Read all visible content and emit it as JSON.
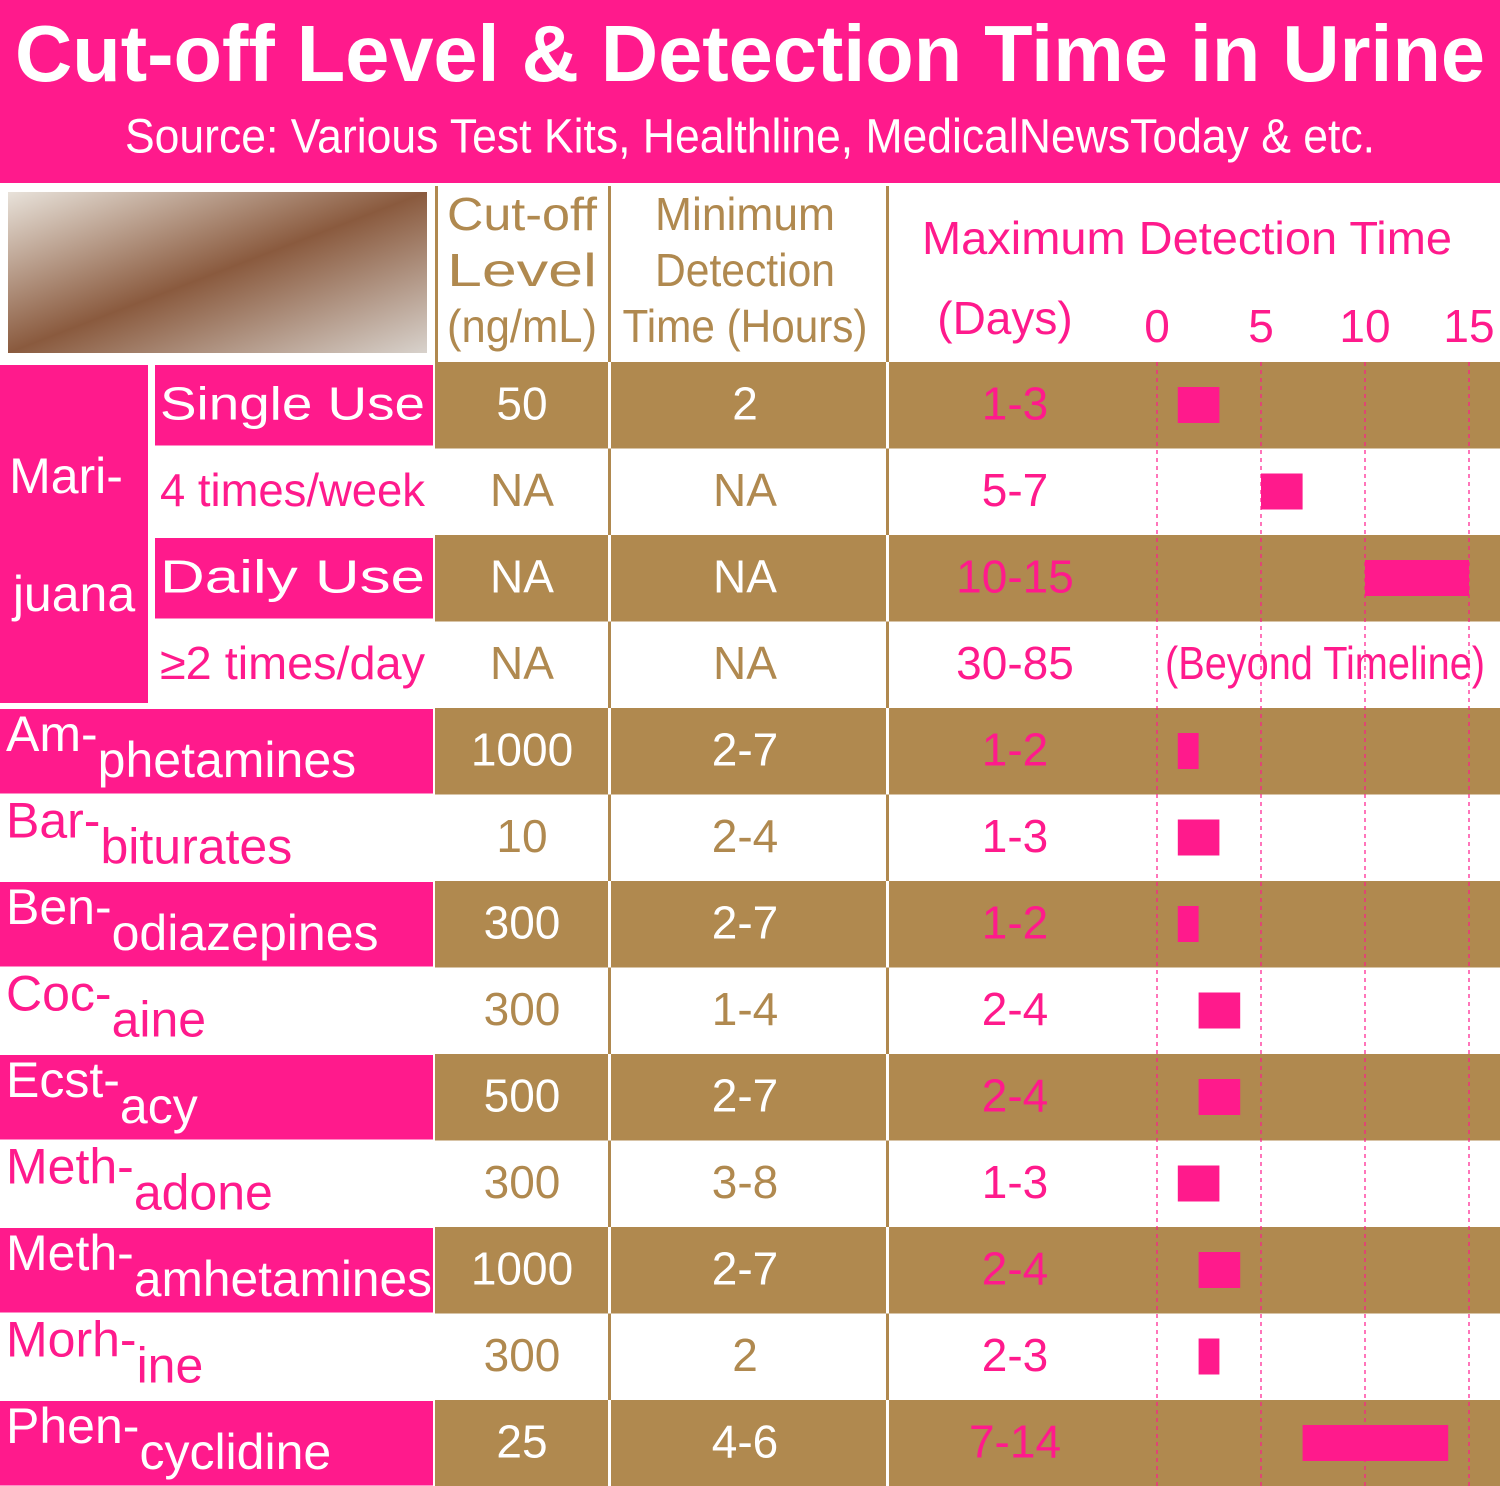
{
  "header": {
    "title": "Cut-off Level & Detection Time in Urine",
    "subtitle": "Source: Various Test Kits, Healthline, MedicalNewsToday & etc."
  },
  "columns": {
    "cutoff": [
      "Cut-off",
      "Level",
      "(ng/mL)"
    ],
    "minimum": [
      "Minimum",
      "Detection",
      "Time (Hours)"
    ],
    "maximum": [
      "Maximum Detection Time",
      "(Days)"
    ]
  },
  "timeline": {
    "xlim": [
      0,
      15
    ],
    "xticks": [
      0,
      5,
      10,
      15
    ],
    "beyond_label": "(Beyond Timeline)"
  },
  "marijuana": {
    "label": [
      "Mari-",
      "juana"
    ],
    "rows": [
      {
        "use": "Single Use",
        "cutoff": "50",
        "minimum": "2",
        "maximum": "1-3",
        "range": [
          1,
          3
        ]
      },
      {
        "use": "4 times/week",
        "cutoff": "NA",
        "minimum": "NA",
        "maximum": "5-7",
        "range": [
          5,
          7
        ]
      },
      {
        "use": "Daily Use",
        "cutoff": "NA",
        "minimum": "NA",
        "maximum": "10-15",
        "range": [
          10,
          15
        ]
      },
      {
        "use": "≥2 times/day",
        "cutoff": "NA",
        "minimum": "NA",
        "maximum": "30-85"
      }
    ]
  },
  "drugs": [
    {
      "name": [
        "Am-",
        "phetamines"
      ],
      "cutoff": "1000",
      "minimum": "2-7",
      "maximum": "1-2",
      "range": [
        1,
        2
      ]
    },
    {
      "name": [
        "Bar-",
        "biturates"
      ],
      "cutoff": "10",
      "minimum": "2-4",
      "maximum": "1-3",
      "range": [
        1,
        3
      ]
    },
    {
      "name": [
        "Ben-",
        "odiazepines"
      ],
      "cutoff": "300",
      "minimum": "2-7",
      "maximum": "1-2",
      "range": [
        1,
        2
      ]
    },
    {
      "name": [
        "Coc-",
        "aine"
      ],
      "cutoff": "300",
      "minimum": "1-4",
      "maximum": "2-4",
      "range": [
        2,
        4
      ]
    },
    {
      "name": [
        "Ecst-",
        "acy"
      ],
      "cutoff": "500",
      "minimum": "2-7",
      "maximum": "2-4",
      "range": [
        2,
        4
      ]
    },
    {
      "name": [
        "Meth-",
        "adone"
      ],
      "cutoff": "300",
      "minimum": "3-8",
      "maximum": "1-3",
      "range": [
        1,
        3
      ]
    },
    {
      "name": [
        "Meth-",
        "amhetamines"
      ],
      "cutoff": "1000",
      "minimum": "2-7",
      "maximum": "2-4",
      "range": [
        2,
        4
      ]
    },
    {
      "name": [
        "Morh-",
        "ine"
      ],
      "cutoff": "300",
      "minimum": "2",
      "maximum": "2-3",
      "range": [
        2,
        3
      ]
    },
    {
      "name": [
        "Phen-",
        "cyclidine"
      ],
      "cutoff": "25",
      "minimum": "4-6",
      "maximum": "7-14",
      "range": [
        7,
        14
      ]
    }
  ]
}
